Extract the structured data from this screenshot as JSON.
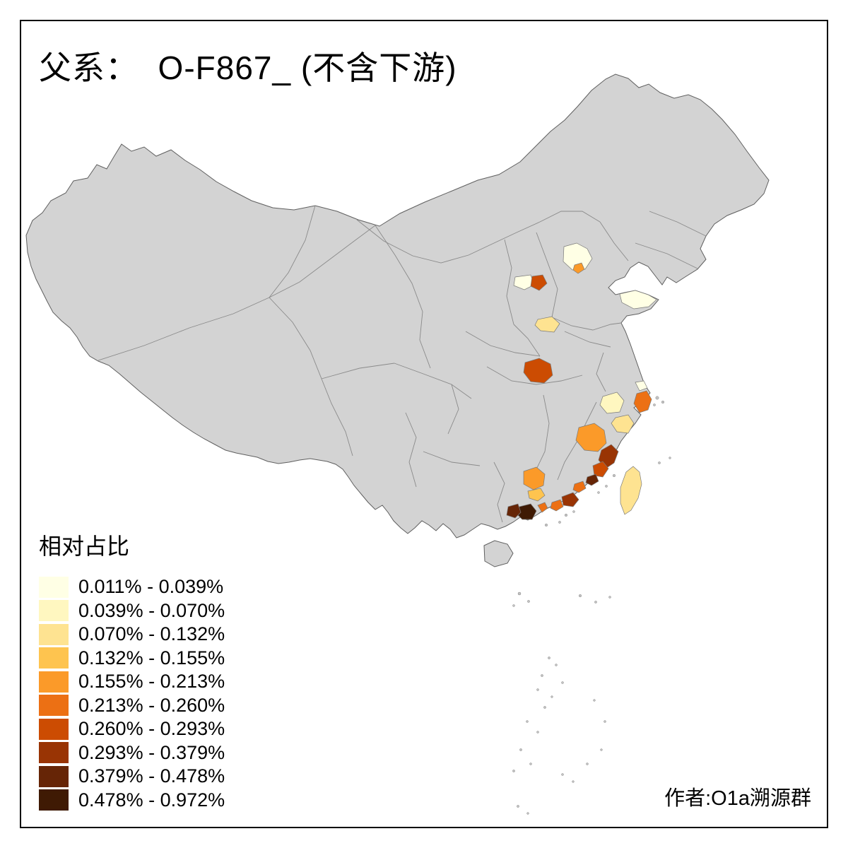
{
  "title": "父系：  O-F867_ (不含下游)",
  "legend": {
    "title": "相对占比",
    "items": [
      {
        "label": "0.011% - 0.039%",
        "color": "#FFFFE5"
      },
      {
        "label": "0.039% - 0.070%",
        "color": "#FFF7C0"
      },
      {
        "label": "0.070% - 0.132%",
        "color": "#FEE391"
      },
      {
        "label": "0.132% - 0.155%",
        "color": "#FEC44F"
      },
      {
        "label": "0.155% - 0.213%",
        "color": "#FB9A29"
      },
      {
        "label": "0.213% - 0.260%",
        "color": "#EC7014"
      },
      {
        "label": "0.260% - 0.293%",
        "color": "#CC4C02"
      },
      {
        "label": "0.293% - 0.379%",
        "color": "#993404"
      },
      {
        "label": "0.379% - 0.478%",
        "color": "#662506"
      },
      {
        "label": "0.478% - 0.972%",
        "color": "#3F1A04"
      }
    ]
  },
  "credit": "作者:O1a溯源群",
  "map": {
    "base_fill": "#D3D3D3",
    "outline_color": "#5F5F5F",
    "background": "#FFFFFF"
  }
}
